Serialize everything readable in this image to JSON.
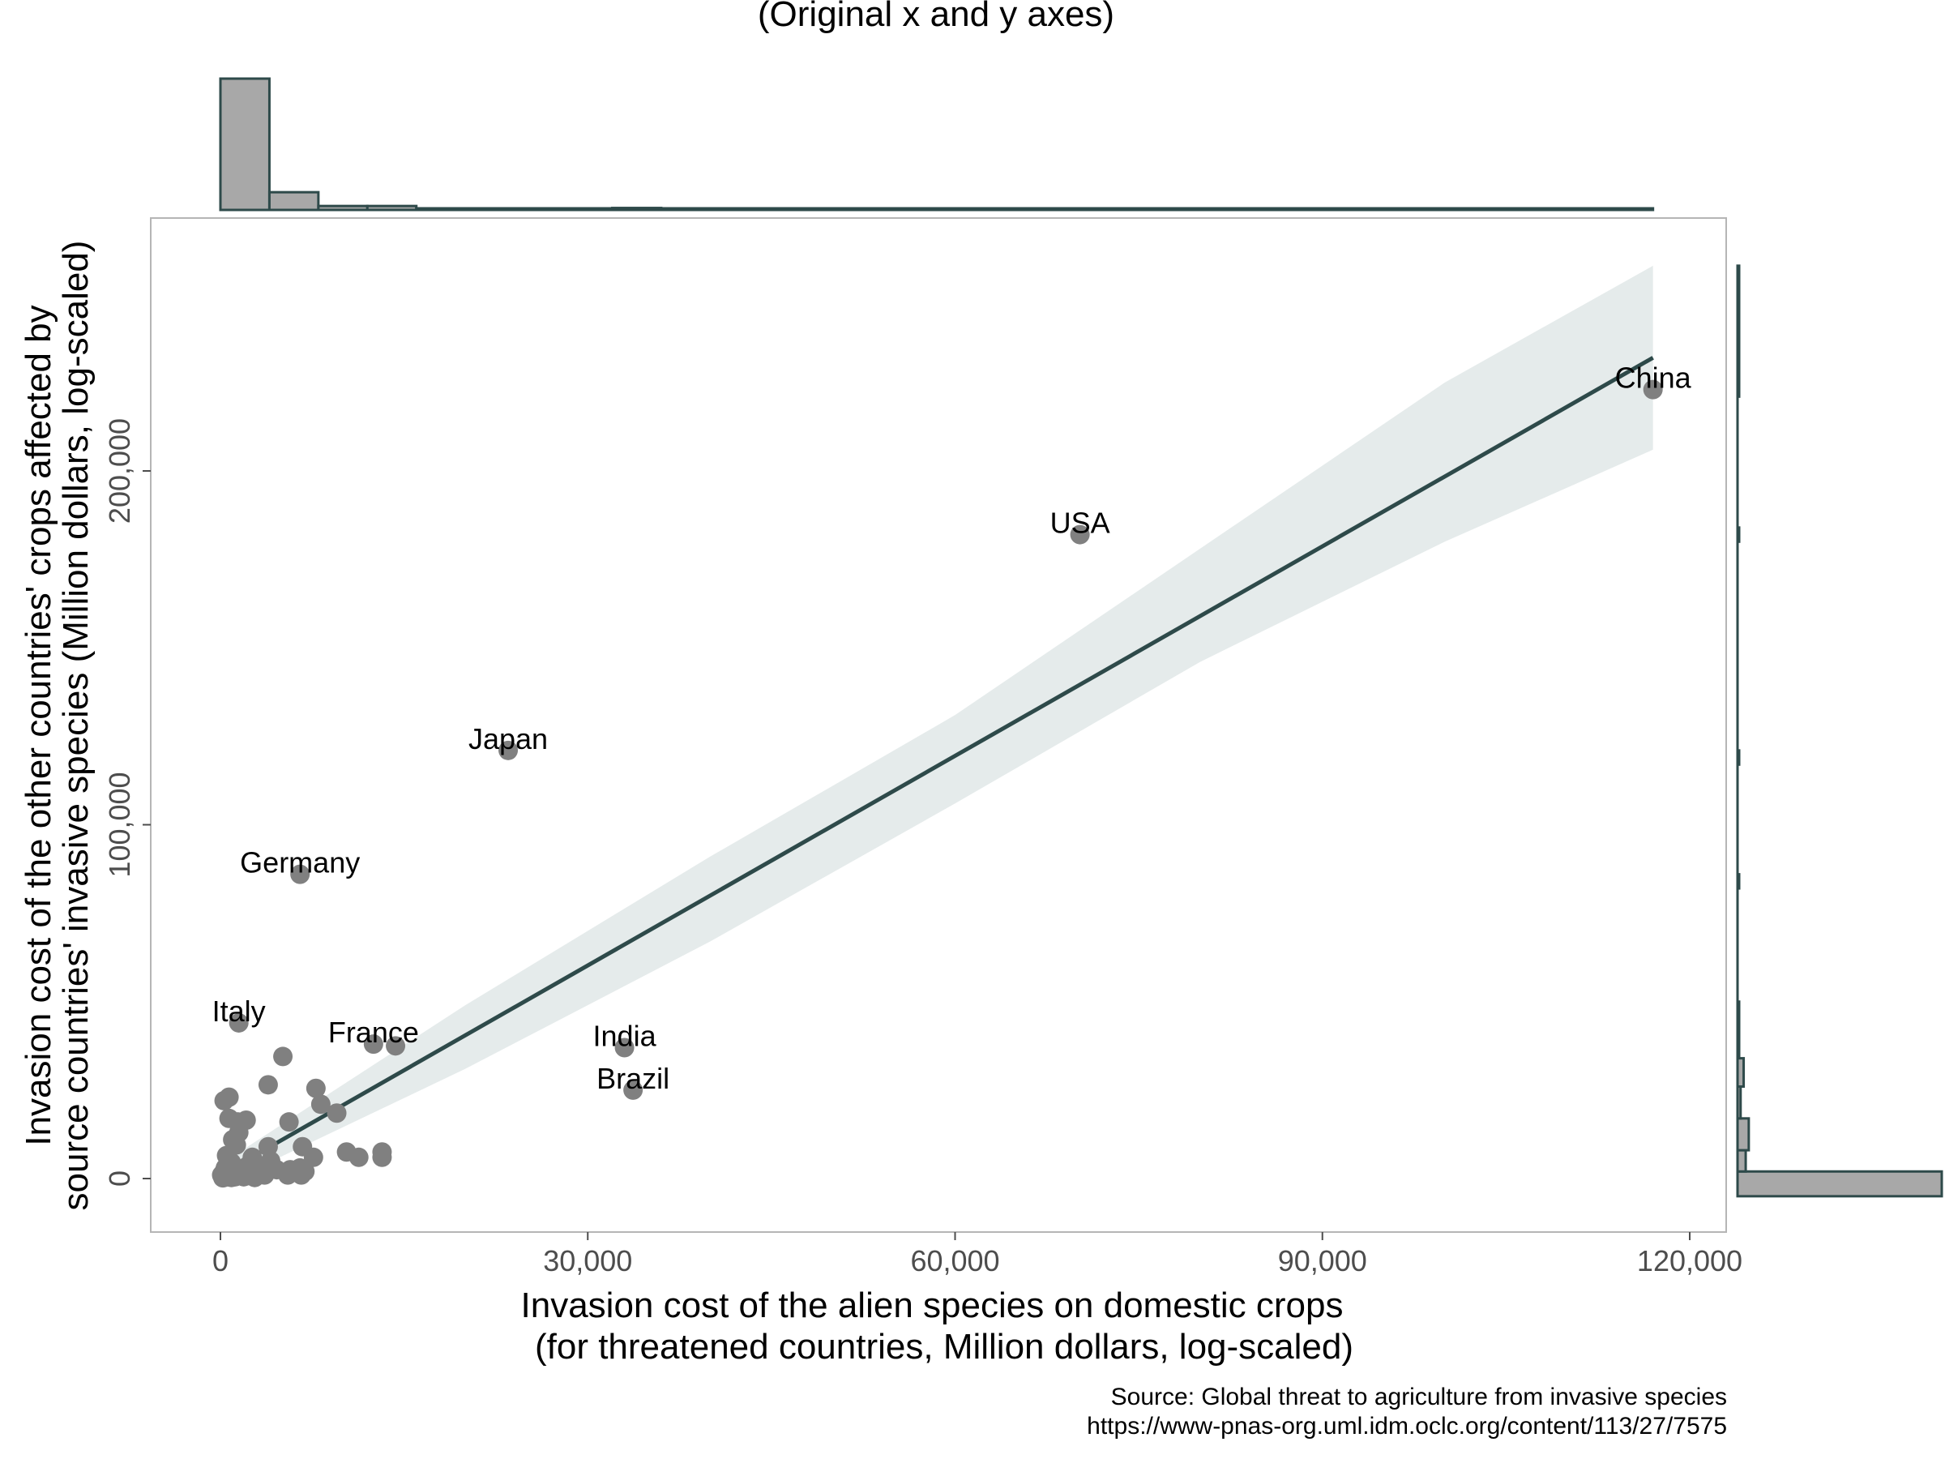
{
  "chart_data": {
    "type": "scatter",
    "title": "(Original x and y axes)",
    "xlabel": [
      "Invasion cost of the alien species on domestic crops",
      "(for threatened countries, Million dollars, log-scaled)"
    ],
    "ylabel": [
      "Invasion cost of the other countries' crops affected by",
      "source countries' invasive species (Million dollars, log-scaled)"
    ],
    "xlim": [
      -6000,
      122000
    ],
    "ylim": [
      -15000,
      272000
    ],
    "xticks": [
      0,
      30000,
      60000,
      90000,
      120000
    ],
    "xtick_labels": [
      "0",
      "30,000",
      "60,000",
      "90,000",
      "120,000"
    ],
    "yticks": [
      0,
      100000,
      200000
    ],
    "ytick_labels": [
      "0",
      "100,000",
      "200,000"
    ],
    "grid": false,
    "labeled_points": [
      {
        "label": "China",
        "x": 117000,
        "y": 223000
      },
      {
        "label": "USA",
        "x": 70200,
        "y": 182000
      },
      {
        "label": "Japan",
        "x": 23500,
        "y": 121000
      },
      {
        "label": "Germany",
        "x": 6500,
        "y": 86000
      },
      {
        "label": "Italy",
        "x": 1500,
        "y": 44000
      },
      {
        "label": "France",
        "x": 12500,
        "y": 38000
      },
      {
        "label": "India",
        "x": 33000,
        "y": 37000
      },
      {
        "label": "Brazil",
        "x": 33700,
        "y": 25000
      }
    ],
    "unlabeled_points": [
      {
        "x": 14300,
        "y": 37500
      },
      {
        "x": 5100,
        "y": 34500
      },
      {
        "x": 3900,
        "y": 26500
      },
      {
        "x": 7800,
        "y": 25500
      },
      {
        "x": 8200,
        "y": 21000
      },
      {
        "x": 9500,
        "y": 18500
      },
      {
        "x": 300,
        "y": 22000
      },
      {
        "x": 700,
        "y": 23000
      },
      {
        "x": 700,
        "y": 17000
      },
      {
        "x": 1400,
        "y": 16000
      },
      {
        "x": 2100,
        "y": 16500
      },
      {
        "x": 5600,
        "y": 16000
      },
      {
        "x": 1500,
        "y": 13000
      },
      {
        "x": 1000,
        "y": 11000
      },
      {
        "x": 1300,
        "y": 9500
      },
      {
        "x": 3900,
        "y": 9000
      },
      {
        "x": 6700,
        "y": 9000
      },
      {
        "x": 10300,
        "y": 7500
      },
      {
        "x": 11300,
        "y": 6000
      },
      {
        "x": 13200,
        "y": 7500
      },
      {
        "x": 13200,
        "y": 6000
      },
      {
        "x": 7600,
        "y": 6000
      },
      {
        "x": 2600,
        "y": 6000
      },
      {
        "x": 4100,
        "y": 5000
      },
      {
        "x": 500,
        "y": 6500
      },
      {
        "x": 900,
        "y": 4500
      },
      {
        "x": 2200,
        "y": 3500
      },
      {
        "x": 3400,
        "y": 3500
      },
      {
        "x": 4600,
        "y": 2500
      },
      {
        "x": 5700,
        "y": 2500
      },
      {
        "x": 6500,
        "y": 3000
      },
      {
        "x": 6900,
        "y": 2000
      },
      {
        "x": 5500,
        "y": 1000
      },
      {
        "x": 6600,
        "y": 1000
      },
      {
        "x": 400,
        "y": 3000
      },
      {
        "x": 1700,
        "y": 2000
      },
      {
        "x": 2900,
        "y": 1500
      },
      {
        "x": 3600,
        "y": 1000
      },
      {
        "x": 100,
        "y": 1000
      },
      {
        "x": 600,
        "y": 500
      },
      {
        "x": 1200,
        "y": 500
      },
      {
        "x": 2400,
        "y": 800
      },
      {
        "x": 200,
        "y": 200
      },
      {
        "x": 900,
        "y": 300
      },
      {
        "x": 1500,
        "y": 1200
      },
      {
        "x": 300,
        "y": 2000
      },
      {
        "x": 1900,
        "y": 500
      },
      {
        "x": 2800,
        "y": 300
      }
    ],
    "fit_line": {
      "x0": 0,
      "y0": 1000,
      "x1": 117000,
      "y1": 232000
    },
    "ci_band": [
      {
        "x": 0,
        "lo": -2000,
        "hi": 4000
      },
      {
        "x": 20000,
        "lo": 31000,
        "hi": 49000
      },
      {
        "x": 40000,
        "lo": 67000,
        "hi": 91000
      },
      {
        "x": 60000,
        "lo": 106000,
        "hi": 131000
      },
      {
        "x": 80000,
        "lo": 146000,
        "hi": 178000
      },
      {
        "x": 100000,
        "lo": 180000,
        "hi": 225000
      },
      {
        "x": 117000,
        "lo": 206000,
        "hi": 258000
      }
    ],
    "top_histogram": {
      "bins": [
        [
          0,
          4000,
          0.2
        ],
        [
          4000,
          8000,
          0.027
        ],
        [
          8000,
          12000,
          0.006
        ],
        [
          12000,
          16000,
          0.006
        ],
        [
          16000,
          20000,
          0.0004
        ],
        [
          20000,
          24000,
          0.0016
        ],
        [
          24000,
          28000,
          0.0004
        ],
        [
          28000,
          32000,
          0.0004
        ],
        [
          32000,
          36000,
          0.003
        ],
        [
          36000,
          70000,
          0.0004
        ],
        [
          68000,
          72000,
          0.0016
        ],
        [
          72000,
          113000,
          0.0004
        ],
        [
          113000,
          117000,
          0.0016
        ]
      ]
    },
    "right_histogram": {
      "bins": [
        [
          -5000,
          2000,
          0.2
        ],
        [
          2000,
          8000,
          0.008
        ],
        [
          8000,
          17000,
          0.011
        ],
        [
          17000,
          26000,
          0.003
        ],
        [
          26000,
          34000,
          0.006
        ],
        [
          34000,
          50000,
          0.001
        ],
        [
          82000,
          86000,
          0.001
        ],
        [
          117000,
          121000,
          0.001
        ],
        [
          180000,
          184000,
          0.001
        ],
        [
          221000,
          225000,
          0.001
        ],
        [
          225000,
          258000,
          0.0005
        ]
      ]
    },
    "colors": {
      "points": "#808080",
      "line": "#2e4a4a",
      "band": "#e5ebeb",
      "hist_fill": "#a8a8a8",
      "hist_edge": "#2e4a4a",
      "frame": "#b5b5b5"
    }
  },
  "source_note": [
    "Source: Global threat to agriculture from invasive species",
    "https://www-pnas-org.uml.idm.oclc.org/content/113/27/7575"
  ]
}
